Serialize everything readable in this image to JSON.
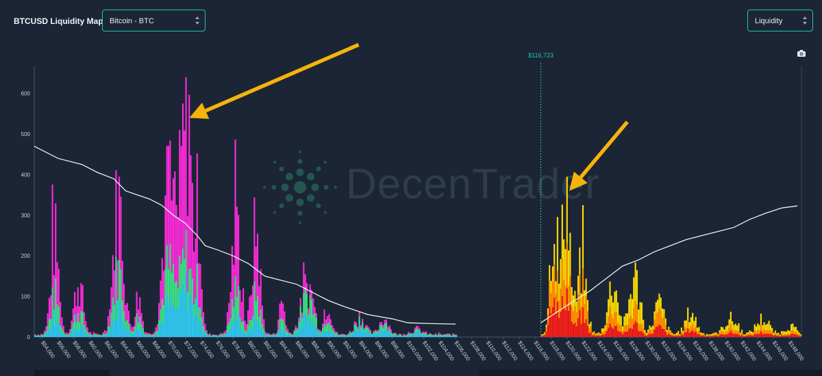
{
  "app": {
    "title": "BTCUSD Liquidity Map"
  },
  "controls": {
    "asset_select": {
      "value": "Bitcoin - BTC"
    },
    "mode_select": {
      "value": "Liquidity"
    }
  },
  "watermark": {
    "text": "DecenTrader"
  },
  "icons": {
    "camera": "camera-icon",
    "chevron": "chevron-updown-icon"
  },
  "colors": {
    "background": "#1b2535",
    "accent": "#1fc7b0",
    "long_tiers": [
      "#29c3f0",
      "#2ee87c",
      "#ff2bdc"
    ],
    "short_tiers": [
      "#e8121e",
      "#ff8a00",
      "#ffe000"
    ],
    "cumulative_line": "#e9f5ef",
    "arrow": "#f5b30c"
  },
  "chart_data": {
    "type": "bar",
    "current_price": {
      "value": 116723,
      "label": "$116,723"
    },
    "xlim": [
      53000,
      149500
    ],
    "ylim": [
      0,
      650
    ],
    "yticks": [
      0,
      100,
      200,
      300,
      400,
      500,
      600
    ],
    "xticks": [
      {
        "value": 54000,
        "label": "$54,000"
      },
      {
        "value": 56000,
        "label": "$56,000"
      },
      {
        "value": 58000,
        "label": "$58,000"
      },
      {
        "value": 60000,
        "label": "$60,000"
      },
      {
        "value": 62000,
        "label": "$62,000"
      },
      {
        "value": 64000,
        "label": "$64,000"
      },
      {
        "value": 66000,
        "label": "$66,000"
      },
      {
        "value": 68000,
        "label": "$68,000"
      },
      {
        "value": 70000,
        "label": "$70,000"
      },
      {
        "value": 72000,
        "label": "$72,000"
      },
      {
        "value": 74000,
        "label": "$74,000"
      },
      {
        "value": 76000,
        "label": "$76,000"
      },
      {
        "value": 78000,
        "label": "$78,000"
      },
      {
        "value": 80000,
        "label": "$80,000"
      },
      {
        "value": 82000,
        "label": "$82,000"
      },
      {
        "value": 84000,
        "label": "$84,000"
      },
      {
        "value": 86000,
        "label": "$86,000"
      },
      {
        "value": 88000,
        "label": "$88,000"
      },
      {
        "value": 90000,
        "label": "$90,000"
      },
      {
        "value": 92000,
        "label": "$92,000"
      },
      {
        "value": 94000,
        "label": "$94,000"
      },
      {
        "value": 96000,
        "label": "$96,000"
      },
      {
        "value": 98000,
        "label": "$98,000"
      },
      {
        "value": 100000,
        "label": "$100,000"
      },
      {
        "value": 102000,
        "label": "$102,000"
      },
      {
        "value": 104000,
        "label": "$104,000"
      },
      {
        "value": 106000,
        "label": "$106,000"
      },
      {
        "value": 108000,
        "label": "$108,000"
      },
      {
        "value": 110000,
        "label": "$110,000"
      },
      {
        "value": 112000,
        "label": "$112,000"
      },
      {
        "value": 114000,
        "label": "$114,000"
      },
      {
        "value": 116000,
        "label": "$116,000"
      },
      {
        "value": 118000,
        "label": "$118,000"
      },
      {
        "value": 120000,
        "label": "$120,000"
      },
      {
        "value": 122000,
        "label": "$122,000"
      },
      {
        "value": 124000,
        "label": "$124,000"
      },
      {
        "value": 126000,
        "label": "$126,000"
      },
      {
        "value": 128000,
        "label": "$128,000"
      },
      {
        "value": 130000,
        "label": "$130,000"
      },
      {
        "value": 132000,
        "label": "$132,000"
      },
      {
        "value": 134000,
        "label": "$134,000"
      },
      {
        "value": 136000,
        "label": "$136,000"
      },
      {
        "value": 138000,
        "label": "$138,000"
      },
      {
        "value": 140000,
        "label": "$140,000"
      },
      {
        "value": 142000,
        "label": "$142,000"
      },
      {
        "value": 144000,
        "label": "$144,000"
      },
      {
        "value": 146000,
        "label": "$146,000"
      },
      {
        "value": 148000,
        "label": "$148,000"
      }
    ],
    "long_side": {
      "x_range": [
        53000,
        106000
      ],
      "step": 200,
      "tiers": [
        "low",
        "mid",
        "high"
      ],
      "peaks": [
        {
          "center": 55500,
          "width": 700,
          "low": 50,
          "mid": 120,
          "high": 280
        },
        {
          "center": 58500,
          "width": 800,
          "low": 30,
          "mid": 70,
          "high": 150
        },
        {
          "center": 63500,
          "width": 900,
          "low": 85,
          "mid": 190,
          "high": 400
        },
        {
          "center": 66000,
          "width": 600,
          "low": 25,
          "mid": 55,
          "high": 110
        },
        {
          "center": 69800,
          "width": 1000,
          "low": 90,
          "mid": 200,
          "high": 420
        },
        {
          "center": 72000,
          "width": 1100,
          "low": 140,
          "mid": 230,
          "high": 620
        },
        {
          "center": 73600,
          "width": 500,
          "low": 60,
          "mid": 120,
          "high": 300
        },
        {
          "center": 78300,
          "width": 800,
          "low": 55,
          "mid": 130,
          "high": 320
        },
        {
          "center": 80800,
          "width": 700,
          "low": 50,
          "mid": 120,
          "high": 310
        },
        {
          "center": 84100,
          "width": 500,
          "low": 20,
          "mid": 50,
          "high": 100
        },
        {
          "center": 87300,
          "width": 1100,
          "low": 55,
          "mid": 115,
          "high": 145
        },
        {
          "center": 89900,
          "width": 600,
          "low": 25,
          "mid": 60,
          "high": 95
        },
        {
          "center": 93900,
          "width": 900,
          "low": 28,
          "mid": 45,
          "high": 55
        },
        {
          "center": 96900,
          "width": 800,
          "low": 24,
          "mid": 40,
          "high": 50
        },
        {
          "center": 101000,
          "width": 1000,
          "low": 8,
          "mid": 12,
          "high": 16
        }
      ]
    },
    "short_side": {
      "x_range": [
        116723,
        149500
      ],
      "step": 200,
      "tiers": [
        "low",
        "mid",
        "high"
      ],
      "peaks": [
        {
          "center": 118200,
          "width": 600,
          "low": 140,
          "mid": 260,
          "high": 330
        },
        {
          "center": 119800,
          "width": 700,
          "low": 130,
          "mid": 250,
          "high": 430
        },
        {
          "center": 121800,
          "width": 800,
          "low": 60,
          "mid": 140,
          "high": 200
        },
        {
          "center": 125700,
          "width": 900,
          "low": 35,
          "mid": 80,
          "high": 150
        },
        {
          "center": 128400,
          "width": 900,
          "low": 35,
          "mid": 80,
          "high": 170
        },
        {
          "center": 131500,
          "width": 900,
          "low": 25,
          "mid": 60,
          "high": 90
        },
        {
          "center": 135500,
          "width": 900,
          "low": 18,
          "mid": 35,
          "high": 65
        },
        {
          "center": 140500,
          "width": 1100,
          "low": 10,
          "mid": 22,
          "high": 45
        },
        {
          "center": 144500,
          "width": 1100,
          "low": 10,
          "mid": 22,
          "high": 45
        },
        {
          "center": 148000,
          "width": 900,
          "low": 5,
          "mid": 10,
          "high": 25
        }
      ]
    },
    "cumulative_long": [
      [
        53000,
        470
      ],
      [
        56000,
        440
      ],
      [
        59000,
        425
      ],
      [
        61000,
        405
      ],
      [
        63000,
        390
      ],
      [
        64500,
        360
      ],
      [
        66000,
        350
      ],
      [
        67500,
        340
      ],
      [
        69000,
        325
      ],
      [
        70500,
        300
      ],
      [
        72000,
        280
      ],
      [
        73500,
        250
      ],
      [
        74500,
        225
      ],
      [
        76000,
        215
      ],
      [
        78000,
        200
      ],
      [
        80000,
        180
      ],
      [
        82000,
        150
      ],
      [
        84000,
        140
      ],
      [
        86000,
        130
      ],
      [
        88000,
        110
      ],
      [
        90000,
        90
      ],
      [
        92000,
        75
      ],
      [
        95000,
        55
      ],
      [
        98000,
        45
      ],
      [
        100000,
        35
      ],
      [
        103000,
        33
      ],
      [
        106000,
        32
      ]
    ],
    "cumulative_short": [
      [
        116723,
        35
      ],
      [
        119000,
        65
      ],
      [
        121000,
        90
      ],
      [
        123000,
        115
      ],
      [
        125000,
        145
      ],
      [
        127000,
        175
      ],
      [
        129000,
        190
      ],
      [
        131000,
        210
      ],
      [
        133000,
        225
      ],
      [
        135000,
        240
      ],
      [
        137000,
        250
      ],
      [
        139000,
        260
      ],
      [
        141000,
        270
      ],
      [
        143000,
        290
      ],
      [
        145000,
        305
      ],
      [
        147000,
        318
      ],
      [
        149000,
        323
      ]
    ],
    "annotations": [
      {
        "type": "arrow",
        "from": [
          93800,
          720
        ],
        "to": [
          72500,
          540
        ]
      },
      {
        "type": "arrow",
        "from": [
          127600,
          530
        ],
        "to": [
          120300,
          360
        ]
      }
    ]
  }
}
